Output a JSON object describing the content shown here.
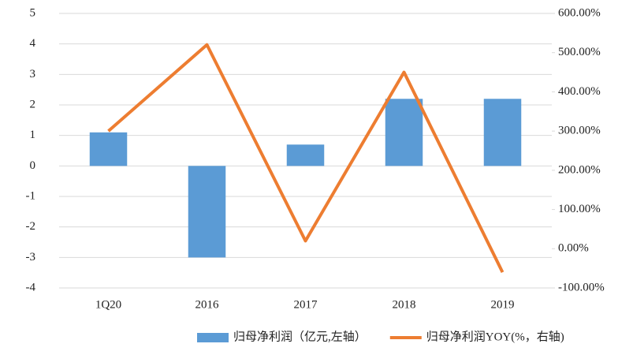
{
  "chart_data": {
    "type": "bar-line",
    "categories": [
      "1Q20",
      "2016",
      "2017",
      "2018",
      "2019"
    ],
    "series": [
      {
        "name": "归母净利润（亿元,左轴）",
        "color": "#5b9bd5",
        "type": "bar",
        "values": [
          1.1,
          -3.0,
          0.7,
          2.2,
          2.2
        ]
      },
      {
        "name": "归母净利润YOY(%，右轴)",
        "color": "#ed7d31",
        "type": "line",
        "axis": "y2",
        "values": [
          300,
          520,
          20,
          450,
          -60
        ]
      }
    ],
    "ylim": [
      -4,
      5
    ],
    "yticks": [
      -4,
      -3,
      -2,
      -1,
      0,
      1,
      2,
      3,
      4,
      5
    ],
    "y2lim": [
      -100,
      600
    ],
    "y2ticks": [
      {
        "value": -100,
        "label": "-100.00%"
      },
      {
        "value": 0,
        "label": "0.00%"
      },
      {
        "value": 100,
        "label": "100.00%"
      },
      {
        "value": 200,
        "label": "200.00%"
      },
      {
        "value": 300,
        "label": "300.00%"
      },
      {
        "value": 400,
        "label": "400.00%"
      },
      {
        "value": 500,
        "label": "500.00%"
      },
      {
        "value": 600,
        "label": "600.00%"
      }
    ],
    "grid": true,
    "legend": "bottom"
  }
}
